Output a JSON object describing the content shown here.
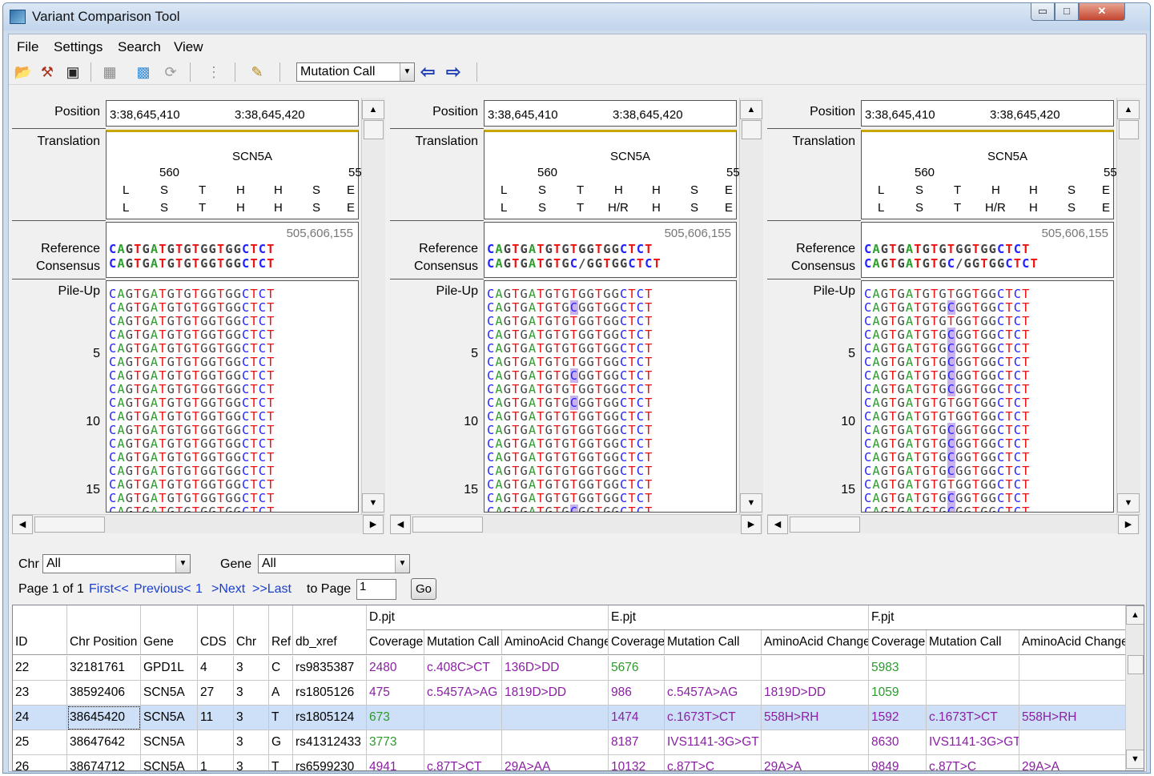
{
  "window": {
    "title": "Variant Comparison Tool",
    "controls": {
      "minimize": "▭",
      "maximize": "□",
      "close": "✕"
    }
  },
  "menu": [
    "File",
    "Settings",
    "Search",
    "View"
  ],
  "toolbar": {
    "icons": [
      "open-folder-icon",
      "tools-icon",
      "save-icon",
      "grid-icon",
      "color-grid-icon",
      "refresh-icon",
      "traffic-light-icon",
      "edit-icon"
    ],
    "mode_select": "Mutation Call",
    "prev_arrow": "⇦",
    "next_arrow": "⇨"
  },
  "panels": [
    {
      "labels": {
        "position": "Position",
        "translation": "Translation",
        "reference": "Reference",
        "consensus": "Consensus",
        "pileup": "Pile-Up"
      },
      "positions": [
        "3:38,645,410",
        "3:38,645,420"
      ],
      "gene": "SCN5A",
      "codon_number": "560",
      "codon_number_cut": "55",
      "aa_ref": [
        "L",
        "S",
        "T",
        "H",
        "H",
        "S",
        "E"
      ],
      "aa_cons": [
        "L",
        "S",
        "T",
        "H",
        "H",
        "S",
        "E"
      ],
      "ref_coord": "505,606,155",
      "reference": "CAGTGATGTGTGGTGGCTCT",
      "consensus": "CAGTGATGTGTGGTGGCTCT",
      "pile_numbers": [
        "5",
        "10",
        "15"
      ],
      "pileup": [
        {
          "s": "CAGTGATGTGTGGTGGCTCT",
          "hl": []
        },
        {
          "s": "CAGTGATGTGTGGTGGCTCT",
          "hl": []
        },
        {
          "s": "CAGTGATGTGTGGTGGCTCT",
          "hl": []
        },
        {
          "s": "CAGTGATGTGTGGTGGCTCT",
          "hl": []
        },
        {
          "s": "CAGTGATGTGTGGTGGCTCT",
          "hl": []
        },
        {
          "s": "CAGTGATGTGTGGTGGCTCT",
          "hl": []
        },
        {
          "s": "CAGTGATGTGTGGTGGCTCT",
          "hl": []
        },
        {
          "s": "CAGTGATGTGTGGTGGCTCT",
          "hl": []
        },
        {
          "s": "CAGTGATGTGTGGTGGCTCT",
          "hl": []
        },
        {
          "s": "CAGTGATGTGTGGTGGCTCT",
          "hl": []
        },
        {
          "s": "CAGTGATGTGTGGTGGCTCT",
          "hl": []
        },
        {
          "s": "CAGTGATGTGTGGTGGCTCT",
          "hl": []
        },
        {
          "s": "CAGTGATGTGTGGTGGCTCT",
          "hl": []
        },
        {
          "s": "CAGTGATGTGTGGTGGCTCT",
          "hl": []
        },
        {
          "s": "CAGTGATGTGTGGTGGCTCT",
          "hl": []
        },
        {
          "s": "CAGTGATGTGTGGTGGCTCT",
          "hl": []
        },
        {
          "s": "CAGTGATGTGTGGTGGCTCT",
          "hl": []
        }
      ]
    },
    {
      "labels": {
        "position": "Position",
        "translation": "Translation",
        "reference": "Reference",
        "consensus": "Consensus",
        "pileup": "Pile-Up"
      },
      "positions": [
        "3:38,645,410",
        "3:38,645,420"
      ],
      "gene": "SCN5A",
      "codon_number": "560",
      "codon_number_cut": "55",
      "aa_ref": [
        "L",
        "S",
        "T",
        "H",
        "H",
        "S",
        "E"
      ],
      "aa_cons": [
        "L",
        "S",
        "T",
        "H/R",
        "H",
        "S",
        "E"
      ],
      "ref_coord": "505,606,155",
      "reference": "CAGTGATGTGTGGTGGCTCT",
      "consensus": "CAGTGATGTGC/GGTGGCTCT",
      "pileup": [
        {
          "s": "CAGTGATGTGTGGTGGCTCT",
          "hl": []
        },
        {
          "s": "CAGTGATGTGCGGTGGCTCT",
          "hl": [
            10
          ]
        },
        {
          "s": "CAGTGATGTGTGGTGGCTCT",
          "hl": []
        },
        {
          "s": "CAGTGATGTGTGGTGGCTCT",
          "hl": []
        },
        {
          "s": "CAGTGATGTGTGGTGGCTCT",
          "hl": []
        },
        {
          "s": "CAGTGATGTGTGGTGGCTCT",
          "hl": []
        },
        {
          "s": "CAGTGATGTGCGGTGGCTCT",
          "hl": [
            10
          ]
        },
        {
          "s": "CAGTGATGTGTGGTGGCTCT",
          "hl": []
        },
        {
          "s": "CAGTGATGTGCGGTGGCTCT",
          "hl": [
            10
          ]
        },
        {
          "s": "CAGTGATGTGTGGTGGCTCT",
          "hl": []
        },
        {
          "s": "CAGTGATGTGTGGTGGCTCT",
          "hl": []
        },
        {
          "s": "CAGTGATGTGTGGTGGCTCT",
          "hl": []
        },
        {
          "s": "CAGTGATGTGTGGTGGCTCT",
          "hl": []
        },
        {
          "s": "CAGTGATGTGTGGTGGCTCT",
          "hl": []
        },
        {
          "s": "CAGTGATGTGTGGTGGCTCT",
          "hl": []
        },
        {
          "s": "CAGTGATGTGTGGTGGCTCT",
          "hl": []
        },
        {
          "s": "CAGTGATGTGCGGTGGCTCT",
          "hl": [
            10
          ]
        }
      ],
      "pile_numbers": [
        "5",
        "10",
        "15"
      ]
    },
    {
      "labels": {
        "position": "Position",
        "translation": "Translation",
        "reference": "Reference",
        "consensus": "Consensus",
        "pileup": "Pile-Up"
      },
      "positions": [
        "3:38,645,410",
        "3:38,645,420"
      ],
      "gene": "SCN5A",
      "codon_number": "560",
      "codon_number_cut": "55",
      "aa_ref": [
        "L",
        "S",
        "T",
        "H",
        "H",
        "S",
        "E"
      ],
      "aa_cons": [
        "L",
        "S",
        "T",
        "H/R",
        "H",
        "S",
        "E"
      ],
      "ref_coord": "505,606,155",
      "reference": "CAGTGATGTGTGGTGGCTCT",
      "consensus": "CAGTGATGTGC/GGTGGCTCT",
      "pileup": [
        {
          "s": "CAGTGATGTGTGGTGGCTCT",
          "hl": []
        },
        {
          "s": "CAGTGATGTGCGGTGGCTCT",
          "hl": [
            10
          ]
        },
        {
          "s": "CAGTGATGTGTGGTGGCTCT",
          "hl": []
        },
        {
          "s": "CAGTGATGTGCGGTGGCTCT",
          "hl": [
            10
          ]
        },
        {
          "s": "CAGTGATGTGCGGTGGCTCT",
          "hl": [
            10
          ]
        },
        {
          "s": "CAGTGATGTGCGGTGGCTCT",
          "hl": [
            10
          ]
        },
        {
          "s": "CAGTGATGTGCGGTGGCTCT",
          "hl": [
            10
          ]
        },
        {
          "s": "CAGTGATGTGCGGTGGCTCT",
          "hl": [
            10
          ]
        },
        {
          "s": "CAGTGATGTGTGGTGGCTCT",
          "hl": []
        },
        {
          "s": "CAGTGATGTGTGGTGGCTCT",
          "hl": []
        },
        {
          "s": "CAGTGATGTGCGGTGGCTCT",
          "hl": [
            10
          ]
        },
        {
          "s": "CAGTGATGTGCGGTGGCTCT",
          "hl": [
            10
          ]
        },
        {
          "s": "CAGTGATGTGCGGTGGCTCT",
          "hl": [
            10
          ]
        },
        {
          "s": "CAGTGATGTGCGGTGGCTCT",
          "hl": [
            10
          ]
        },
        {
          "s": "CAGTGATGTGTGGTGGCTCT",
          "hl": []
        },
        {
          "s": "CAGTGATGTGCGGTGGCTCT",
          "hl": [
            10
          ]
        },
        {
          "s": "CAGTGATGTGCGGTGGCTCT",
          "hl": [
            10
          ]
        }
      ],
      "pile_numbers": [
        "5",
        "10",
        "15"
      ]
    }
  ],
  "filters": {
    "chr_label": "Chr",
    "chr_value": "All",
    "gene_label": "Gene",
    "gene_value": "All"
  },
  "pager": {
    "page_info": "Page 1 of 1",
    "first": "First<<",
    "previous": "Previous<",
    "current": "1",
    "next": ">Next",
    "last": ">>Last",
    "to_page_label": "to Page",
    "to_page_value": "1",
    "go": "Go"
  },
  "table": {
    "groups": [
      "D.pjt",
      "E.pjt",
      "F.pjt"
    ],
    "columns": [
      "ID",
      "Chr Position",
      "Gene",
      "CDS",
      "Chr",
      "Ref",
      "db_xref",
      "Coverage",
      "Mutation Call",
      "AminoAcid Change",
      "Coverage",
      "Mutation Call",
      "AminoAcid Change",
      "Coverage",
      "Mutation Call",
      "AminoAcid Change"
    ],
    "rows": [
      {
        "cells": [
          "22",
          "32181761",
          "GPD1L",
          "4",
          "3",
          "C",
          "rs9835387",
          "2480",
          "c.408C>CT",
          "136D>DD",
          "5676",
          "",
          "",
          "5983",
          "",
          ""
        ],
        "colors": [
          "",
          "",
          "",
          "",
          "",
          "",
          "",
          "purple",
          "purple",
          "purple",
          "green",
          "",
          "",
          "green",
          "",
          ""
        ]
      },
      {
        "cells": [
          "23",
          "38592406",
          "SCN5A",
          "27",
          "3",
          "A",
          "rs1805126",
          "475",
          "c.5457A>AG",
          "1819D>DD",
          "986",
          "c.5457A>AG",
          "1819D>DD",
          "1059",
          "",
          ""
        ],
        "colors": [
          "",
          "",
          "",
          "",
          "",
          "",
          "",
          "purple",
          "purple",
          "purple",
          "purple",
          "purple",
          "purple",
          "green",
          "",
          ""
        ]
      },
      {
        "cells": [
          "24",
          "38645420",
          "SCN5A",
          "11",
          "3",
          "T",
          "rs1805124",
          "673",
          "",
          "",
          "1474",
          "c.1673T>CT",
          "558H>RH",
          "1592",
          "c.1673T>CT",
          "558H>RH"
        ],
        "colors": [
          "",
          "",
          "",
          "",
          "",
          "",
          "",
          "green",
          "",
          "",
          "purple",
          "purple",
          "purple",
          "purple",
          "purple",
          "purple"
        ],
        "selected": true
      },
      {
        "cells": [
          "25",
          "38647642",
          "SCN5A",
          "",
          "3",
          "G",
          "rs41312433",
          "3773",
          "",
          "",
          "8187",
          "IVS1141-3G>GT",
          "",
          "8630",
          "IVS1141-3G>GT",
          ""
        ],
        "colors": [
          "",
          "",
          "",
          "",
          "",
          "",
          "",
          "green",
          "",
          "",
          "purple",
          "purple",
          "",
          "purple",
          "purple",
          ""
        ]
      },
      {
        "cells": [
          "26",
          "38674712",
          "SCN5A",
          "1",
          "3",
          "T",
          "rs6599230",
          "4941",
          "c.87T>CT",
          "29A>AA",
          "10132",
          "c.87T>C",
          "29A>A",
          "9849",
          "c.87T>C",
          "29A>A"
        ],
        "colors": [
          "",
          "",
          "",
          "",
          "",
          "",
          "",
          "purple",
          "purple",
          "purple",
          "purple",
          "purple",
          "purple",
          "purple",
          "purple",
          "purple"
        ]
      }
    ]
  }
}
